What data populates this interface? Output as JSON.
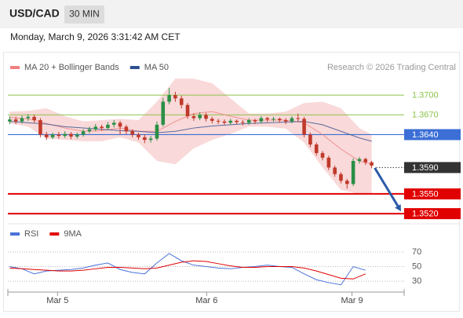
{
  "header": {
    "symbol": "USD/CAD",
    "interval": "30 MIN",
    "timestamp": "Monday, March 9, 2026 3:31:42 AM CET"
  },
  "chart_data": [
    {
      "type": "candlestick",
      "credit": "Research © 2026 Trading Central",
      "xlim": [
        -0.3,
        64.3
      ],
      "ylim": [
        1.3507,
        1.3755
      ],
      "xticks": [
        {
          "value": 7.8,
          "label": "Mar 5"
        },
        {
          "value": 32.1,
          "label": "Mar 6"
        },
        {
          "value": 55.8,
          "label": "Mar 9"
        }
      ],
      "ohlc": {
        "up_color": "#2a8f46",
        "down_color": "#c0392b",
        "open": [
          1.366,
          1.3663,
          1.366,
          1.3665,
          1.3667,
          1.3662,
          1.364,
          1.3636,
          1.364,
          1.3638,
          1.3641,
          1.3637,
          1.364,
          1.3645,
          1.3648,
          1.3652,
          1.365,
          1.3655,
          1.3658,
          1.3652,
          1.3645,
          1.364,
          1.3636,
          1.3632,
          1.3634,
          1.3655,
          1.369,
          1.37,
          1.3695,
          1.3685,
          1.3668,
          1.3665,
          1.367,
          1.3664,
          1.3661,
          1.366,
          1.3658,
          1.3661,
          1.3659,
          1.3658,
          1.3662,
          1.366,
          1.3665,
          1.3663,
          1.3664,
          1.3662,
          1.366,
          1.3665,
          1.3664,
          1.364,
          1.3625,
          1.3612,
          1.3605,
          1.359,
          1.358,
          1.357,
          1.3565,
          1.36,
          1.3603,
          1.3598
        ],
        "high": [
          1.3668,
          1.3667,
          1.3669,
          1.3671,
          1.367,
          1.3665,
          1.3644,
          1.3643,
          1.3644,
          1.3645,
          1.3644,
          1.3643,
          1.3648,
          1.3652,
          1.3656,
          1.3655,
          1.3659,
          1.3662,
          1.3661,
          1.3655,
          1.3648,
          1.3643,
          1.364,
          1.3638,
          1.366,
          1.3696,
          1.3711,
          1.3705,
          1.3699,
          1.3688,
          1.3672,
          1.3674,
          1.3673,
          1.3667,
          1.3664,
          1.3663,
          1.3664,
          1.3663,
          1.3662,
          1.3665,
          1.3664,
          1.3668,
          1.3667,
          1.3667,
          1.3666,
          1.3665,
          1.3668,
          1.3672,
          1.3667,
          1.3643,
          1.3628,
          1.3615,
          1.3608,
          1.3593,
          1.3583,
          1.3573,
          1.3604,
          1.3606,
          1.3605,
          1.36
        ],
        "low": [
          1.3656,
          1.3656,
          1.3657,
          1.3661,
          1.3658,
          1.3636,
          1.3632,
          1.3633,
          1.3634,
          1.3635,
          1.3633,
          1.3634,
          1.3637,
          1.3642,
          1.3645,
          1.3646,
          1.3647,
          1.3651,
          1.364,
          1.3641,
          1.3636,
          1.3632,
          1.3627,
          1.3628,
          1.3631,
          1.3652,
          1.3686,
          1.369,
          1.368,
          1.3664,
          1.3661,
          1.3662,
          1.366,
          1.3657,
          1.3656,
          1.3655,
          1.3655,
          1.3656,
          1.3654,
          1.3655,
          1.3656,
          1.3657,
          1.3659,
          1.366,
          1.3658,
          1.3656,
          1.3657,
          1.366,
          1.3636,
          1.3621,
          1.3608,
          1.3601,
          1.3586,
          1.3576,
          1.3566,
          1.3558,
          1.3562,
          1.3596,
          1.3594,
          1.3589
        ],
        "close": [
          1.3663,
          1.366,
          1.3665,
          1.3667,
          1.3662,
          1.364,
          1.3636,
          1.364,
          1.3638,
          1.3641,
          1.3637,
          1.364,
          1.3645,
          1.3648,
          1.3652,
          1.365,
          1.3655,
          1.3658,
          1.3652,
          1.3645,
          1.364,
          1.3636,
          1.3632,
          1.3634,
          1.3655,
          1.369,
          1.37,
          1.3695,
          1.3685,
          1.3668,
          1.3665,
          1.367,
          1.3664,
          1.3661,
          1.366,
          1.3658,
          1.3661,
          1.3659,
          1.3658,
          1.3662,
          1.366,
          1.3665,
          1.3663,
          1.3664,
          1.3662,
          1.366,
          1.3665,
          1.3664,
          1.364,
          1.3625,
          1.3612,
          1.3605,
          1.359,
          1.358,
          1.357,
          1.3565,
          1.36,
          1.3603,
          1.3598,
          1.3593
        ]
      },
      "series": [
        {
          "name": "MA 20 + Bollinger Bands",
          "color": "#f08080",
          "band_color": "#f7c9c9",
          "x": [
            0,
            3,
            6,
            9,
            12,
            15,
            18,
            21,
            24,
            27,
            30,
            33,
            36,
            39,
            42,
            45,
            48,
            51,
            54,
            57,
            59
          ],
          "values": [
            1.3666,
            1.3664,
            1.3657,
            1.365,
            1.3645,
            1.3646,
            1.365,
            1.3645,
            1.3645,
            1.366,
            1.3672,
            1.3675,
            1.3668,
            1.3662,
            1.3662,
            1.3662,
            1.3658,
            1.364,
            1.3618,
            1.36,
            1.3595
          ],
          "upper": [
            1.3675,
            1.3676,
            1.368,
            1.3668,
            1.366,
            1.3662,
            1.3664,
            1.3662,
            1.369,
            1.3725,
            1.3725,
            1.3718,
            1.3695,
            1.3672,
            1.3672,
            1.3675,
            1.3688,
            1.369,
            1.368,
            1.365,
            1.364
          ],
          "lower": [
            1.3657,
            1.3652,
            1.3634,
            1.3632,
            1.363,
            1.363,
            1.3636,
            1.3628,
            1.36,
            1.3595,
            1.3619,
            1.3632,
            1.3641,
            1.3652,
            1.3652,
            1.3649,
            1.3628,
            1.359,
            1.3556,
            1.355,
            1.355
          ]
        },
        {
          "name": "MA 50",
          "color": "#2f4f8f",
          "x": [
            0,
            3,
            6,
            9,
            12,
            15,
            18,
            21,
            24,
            27,
            30,
            33,
            36,
            39,
            42,
            45,
            48,
            51,
            54,
            57,
            59
          ],
          "values": [
            1.366,
            1.3658,
            1.3656,
            1.3652,
            1.365,
            1.3648,
            1.3646,
            1.3645,
            1.3643,
            1.3645,
            1.365,
            1.3653,
            1.3655,
            1.3657,
            1.3658,
            1.3659,
            1.366,
            1.3655,
            1.3645,
            1.3635,
            1.363
          ]
        }
      ],
      "levels": [
        {
          "value": 1.37,
          "label": "1.3700",
          "color": "#8bc34a",
          "label_box": false,
          "line_style": "solid",
          "line_width": 1
        },
        {
          "value": 1.367,
          "label": "1.3670",
          "color": "#8bc34a",
          "label_box": false,
          "line_style": "solid",
          "line_width": 1
        },
        {
          "value": 1.364,
          "label": "1.3640",
          "color": "#3b6fd6",
          "label_box": true,
          "line_style": "solid",
          "line_width": 1.2
        },
        {
          "value": 1.359,
          "label": "1.3590",
          "color": "#333333",
          "label_box": true,
          "line_style": "dotted",
          "line_width": 1
        },
        {
          "value": 1.355,
          "label": "1.3550",
          "color": "#e00000",
          "label_box": true,
          "line_style": "solid",
          "line_width": 2
        },
        {
          "value": 1.352,
          "label": "1.3520",
          "color": "#e00000",
          "label_box": true,
          "line_style": "solid",
          "line_width": 2
        }
      ]
    },
    {
      "type": "line",
      "xlim": [
        -0.3,
        64.3
      ],
      "ylim": [
        15,
        98
      ],
      "yticks": [
        30,
        50,
        70
      ],
      "series": [
        {
          "name": "RSI",
          "color": "#4a72d9",
          "x": [
            0,
            2,
            4,
            6,
            8,
            10,
            12,
            14,
            16,
            18,
            20,
            22,
            24,
            26,
            28,
            30,
            32,
            34,
            36,
            38,
            40,
            42,
            44,
            46,
            48,
            50,
            52,
            54,
            56,
            58
          ],
          "values": [
            50,
            47,
            40,
            44,
            45,
            46,
            48,
            52,
            55,
            46,
            42,
            40,
            55,
            68,
            58,
            52,
            50,
            48,
            47,
            49,
            50,
            52,
            50,
            49,
            40,
            32,
            28,
            25,
            50,
            45
          ]
        },
        {
          "name": "9MA",
          "color": "#e00000",
          "x": [
            0,
            2,
            4,
            6,
            8,
            10,
            12,
            14,
            16,
            18,
            20,
            22,
            24,
            26,
            28,
            30,
            32,
            34,
            36,
            38,
            40,
            42,
            44,
            46,
            48,
            50,
            52,
            54,
            56,
            58
          ],
          "values": [
            48,
            47,
            46,
            45,
            44,
            44,
            45,
            47,
            49,
            49,
            48,
            47,
            48,
            52,
            56,
            58,
            57,
            54,
            51,
            49,
            49,
            50,
            50,
            50,
            48,
            44,
            39,
            34,
            33,
            40
          ]
        }
      ]
    }
  ]
}
